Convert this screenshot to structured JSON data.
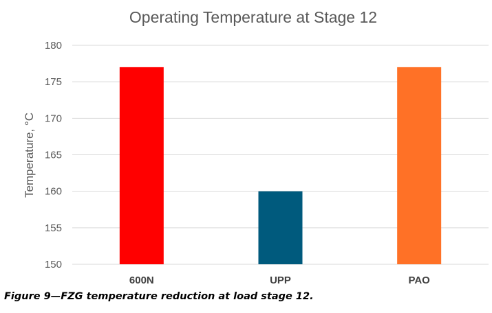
{
  "chart_data": {
    "type": "bar",
    "title": "Operating Temperature at Stage 12",
    "xlabel": "",
    "ylabel": "Temperature, °C",
    "categories": [
      "600N",
      "UPP",
      "PAO"
    ],
    "values": [
      177,
      160,
      177
    ],
    "colors": [
      "#ff0000",
      "#005a7d",
      "#ff7126"
    ],
    "ylim": [
      150,
      180
    ],
    "yticks": [
      150,
      155,
      160,
      165,
      170,
      175,
      180
    ],
    "grid": true,
    "legend": "none"
  },
  "caption": "Figure 9—FZG temperature reduction at load stage 12.",
  "colors": {
    "grid": "#d9d9d9",
    "axis_text": "#595959",
    "category_text": "#404040"
  }
}
